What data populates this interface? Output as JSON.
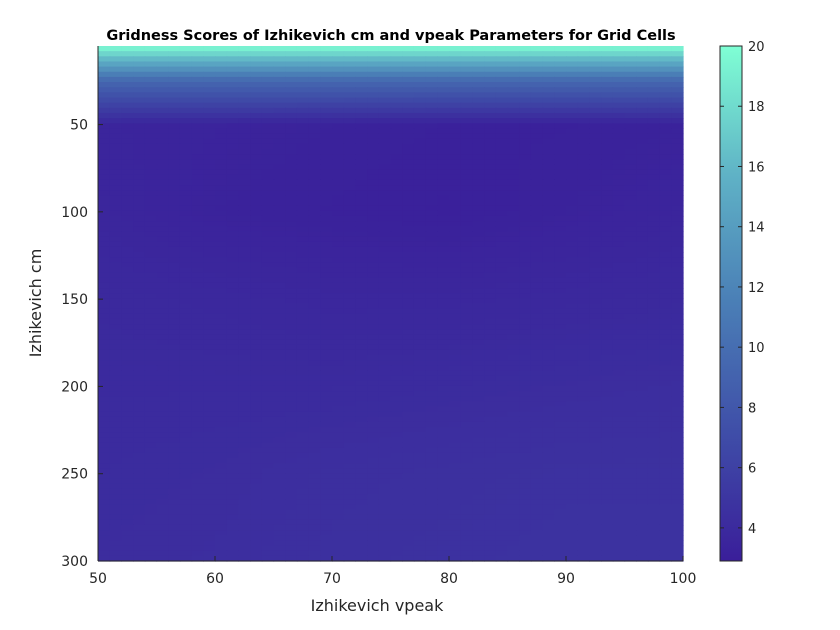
{
  "chart_data": {
    "type": "heatmap",
    "title": "Gridness Scores of Izhikevich cm and vpeak Parameters for Grid Cells",
    "xlabel": "Izhikevich vpeak",
    "ylabel": "Izhikevich cm",
    "xlim": [
      50,
      100
    ],
    "ylim": [
      300,
      5
    ],
    "y_direction": "reversed",
    "x_ticks": [
      50,
      60,
      70,
      80,
      90,
      100
    ],
    "y_ticks": [
      50,
      100,
      150,
      200,
      250,
      300
    ],
    "colorbar": {
      "range": [
        2.9,
        20
      ],
      "ticks": [
        4,
        6,
        8,
        10,
        12,
        14,
        16,
        18,
        20
      ],
      "colormap": [
        "#3a1e9a",
        "#3f4ea8",
        "#4a7eb6",
        "#5fb2c6",
        "#7fffd4"
      ]
    },
    "x": [
      50,
      60,
      70,
      80,
      90,
      100
    ],
    "y": [
      5,
      25,
      50,
      100,
      150,
      200,
      250,
      300
    ],
    "z": [
      [
        20.0,
        20.0,
        20.0,
        20.0,
        20.0,
        20.0
      ],
      [
        9.5,
        9.5,
        9.5,
        9.5,
        9.5,
        9.5
      ],
      [
        3.5,
        3.4,
        3.3,
        3.2,
        3.2,
        3.3
      ],
      [
        3.6,
        3.3,
        3.2,
        3.1,
        3.3,
        3.5
      ],
      [
        3.9,
        3.8,
        3.7,
        3.7,
        3.8,
        3.9
      ],
      [
        4.0,
        4.0,
        4.0,
        4.1,
        4.2,
        4.3
      ],
      [
        4.1,
        4.2,
        4.4,
        4.5,
        4.6,
        4.6
      ],
      [
        4.2,
        4.3,
        4.5,
        4.6,
        4.7,
        4.7
      ]
    ],
    "grid": false,
    "legend": "none"
  }
}
